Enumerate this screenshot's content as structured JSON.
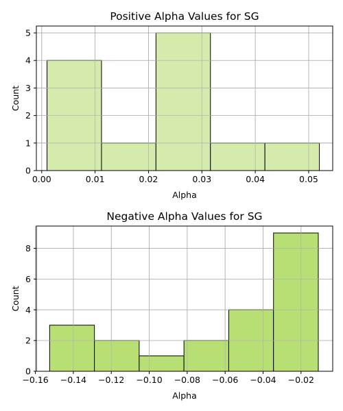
{
  "chart_data": [
    {
      "type": "bar",
      "title": "Positive Alpha Values for SG",
      "xlabel": "Alpha",
      "ylabel": "Count",
      "xlim": [
        -0.001,
        0.0545
      ],
      "ylim": [
        0,
        5.25
      ],
      "grid": true,
      "bar_color": "#d4ebab",
      "bins": [
        {
          "x0": 0.001,
          "x1": 0.0112,
          "count": 4
        },
        {
          "x0": 0.0112,
          "x1": 0.0214,
          "count": 1
        },
        {
          "x0": 0.0214,
          "x1": 0.0316,
          "count": 5
        },
        {
          "x0": 0.0316,
          "x1": 0.0418,
          "count": 1
        },
        {
          "x0": 0.0418,
          "x1": 0.052,
          "count": 1
        }
      ],
      "xticks": [
        0.0,
        0.01,
        0.02,
        0.03,
        0.04,
        0.05
      ],
      "xtick_labels": [
        "0.00",
        "0.01",
        "0.02",
        "0.03",
        "0.04",
        "0.05"
      ],
      "yticks": [
        0,
        1,
        2,
        3,
        4,
        5
      ],
      "ytick_labels": [
        "0",
        "1",
        "2",
        "3",
        "4",
        "5"
      ]
    },
    {
      "type": "bar",
      "title": "Negative Alpha Values for SG",
      "xlabel": "Alpha",
      "ylabel": "Count",
      "xlim": [
        -0.1595,
        -0.0033
      ],
      "ylim": [
        0,
        9.45
      ],
      "grid": true,
      "bar_color": "#b8df74",
      "bins": [
        {
          "x0": -0.1525,
          "x1": -0.1289,
          "count": 3
        },
        {
          "x0": -0.1289,
          "x1": -0.1053,
          "count": 2
        },
        {
          "x0": -0.1053,
          "x1": -0.0817,
          "count": 1
        },
        {
          "x0": -0.0817,
          "x1": -0.0581,
          "count": 2
        },
        {
          "x0": -0.0581,
          "x1": -0.0345,
          "count": 4
        },
        {
          "x0": -0.0345,
          "x1": -0.0109,
          "count": 9
        }
      ],
      "xticks": [
        -0.16,
        -0.14,
        -0.12,
        -0.1,
        -0.08,
        -0.06,
        -0.04,
        -0.02
      ],
      "xtick_labels": [
        "−0.16",
        "−0.14",
        "−0.12",
        "−0.10",
        "−0.08",
        "−0.06",
        "−0.04",
        "−0.02"
      ],
      "yticks": [
        0,
        2,
        4,
        6,
        8
      ],
      "ytick_labels": [
        "0",
        "2",
        "4",
        "6",
        "8"
      ]
    }
  ]
}
